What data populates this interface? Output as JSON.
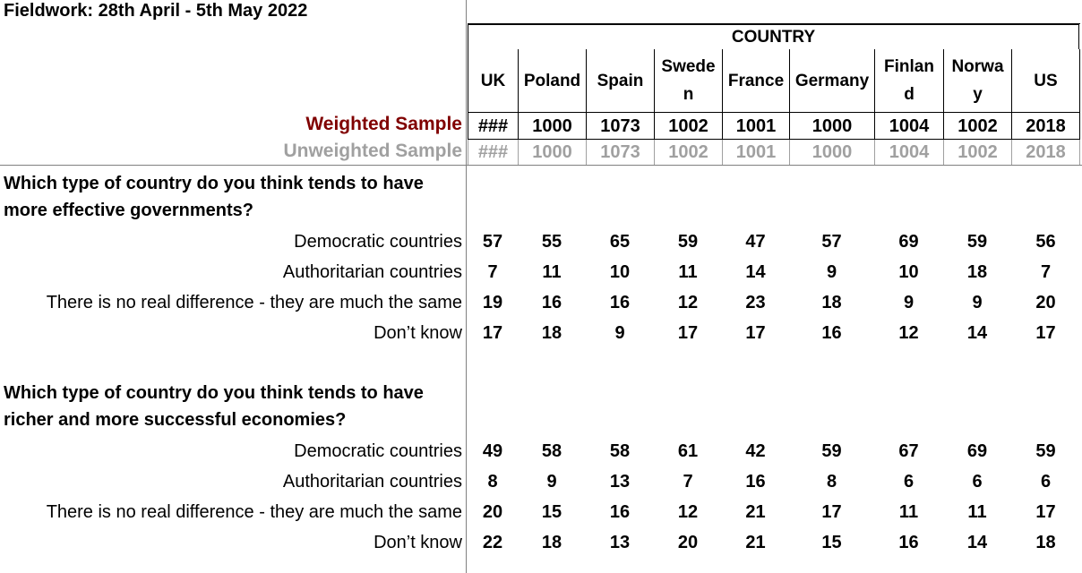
{
  "fieldwork": "Fieldwork: 28th April - 5th May 2022",
  "country_header": "COUNTRY",
  "columns": [
    {
      "label": "UK"
    },
    {
      "label": "Poland"
    },
    {
      "label": "Spain"
    },
    {
      "label": "Swede\nn"
    },
    {
      "label": "France"
    },
    {
      "label": "Germany"
    },
    {
      "label": "Finlan\nd"
    },
    {
      "label": "Norwa\ny"
    },
    {
      "label": "US"
    }
  ],
  "weighted_label": "Weighted Sample",
  "unweighted_label": "Unweighted Sample",
  "weighted": [
    "###",
    "1000",
    "1073",
    "1002",
    "1001",
    "1000",
    "1004",
    "1002",
    "2018"
  ],
  "unweighted": [
    "###",
    "1000",
    "1073",
    "1002",
    "1001",
    "1000",
    "1004",
    "1002",
    "2018"
  ],
  "questions": [
    {
      "text": "Which type of country do you think tends to have more effective governments?",
      "rows": [
        {
          "label": "Democratic countries",
          "values": [
            "57",
            "55",
            "65",
            "59",
            "47",
            "57",
            "69",
            "59",
            "56"
          ]
        },
        {
          "label": "Authoritarian countries",
          "values": [
            "7",
            "11",
            "10",
            "11",
            "14",
            "9",
            "10",
            "18",
            "7"
          ]
        },
        {
          "label": "There is no real difference - they are much the same",
          "values": [
            "19",
            "16",
            "16",
            "12",
            "23",
            "18",
            "9",
            "9",
            "20"
          ]
        },
        {
          "label": "Don’t know",
          "values": [
            "17",
            "18",
            "9",
            "17",
            "17",
            "16",
            "12",
            "14",
            "17"
          ]
        }
      ]
    },
    {
      "text": "Which type of country do you think tends to have richer and more successful economies?",
      "rows": [
        {
          "label": "Democratic countries",
          "values": [
            "49",
            "58",
            "58",
            "61",
            "42",
            "59",
            "67",
            "69",
            "59"
          ]
        },
        {
          "label": "Authoritarian countries",
          "values": [
            "8",
            "9",
            "13",
            "7",
            "16",
            "8",
            "6",
            "6",
            "6"
          ]
        },
        {
          "label": "There is no real difference - they are much the same",
          "values": [
            "20",
            "15",
            "16",
            "12",
            "21",
            "17",
            "11",
            "11",
            "17"
          ]
        },
        {
          "label": "Don’t know",
          "values": [
            "22",
            "18",
            "13",
            "20",
            "21",
            "15",
            "16",
            "14",
            "18"
          ]
        }
      ]
    }
  ]
}
